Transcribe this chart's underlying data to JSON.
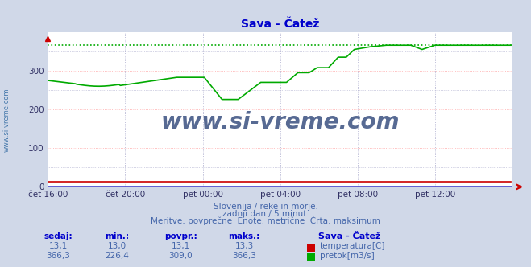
{
  "title": "Sava - Čatež",
  "title_color": "#0000cc",
  "bg_color": "#d0d8e8",
  "plot_bg_color": "#ffffff",
  "grid_color": "#aaaacc",
  "grid_red": "#ffaaaa",
  "axis_color": "#4444cc",
  "arrow_color": "#cc0000",
  "watermark_text": "www.si-vreme.com",
  "watermark_color": "#3a5080",
  "watermark_side": "www.si-vreme.com",
  "watermark_side_color": "#4477aa",
  "subtitle_lines": [
    "Slovenija / reke in morje.",
    "zadnji dan / 5 minut.",
    "Meritve: povprečne  Enote: metrične  Črta: maksimum"
  ],
  "subtitle_color": "#4466aa",
  "xtick_labels": [
    "čet 16:00",
    "čet 20:00",
    "pet 00:00",
    "pet 04:00",
    "pet 08:00",
    "pet 12:00"
  ],
  "ytick_values": [
    0,
    100,
    200,
    300
  ],
  "ytick_labels": [
    "0",
    "100",
    "200",
    "300"
  ],
  "ymin": 0,
  "ymax": 400,
  "xmin": 0,
  "xmax": 288,
  "flow_color": "#00aa00",
  "flow_max_value": 366.3,
  "temp_color": "#cc0000",
  "legend_title": "Sava - Čatež",
  "table_headers": [
    "sedaj:",
    "min.:",
    "povpr.:",
    "maks.:"
  ],
  "table_temp": [
    13.1,
    13.0,
    13.1,
    13.3
  ],
  "table_flow": [
    366.3,
    226.4,
    309.0,
    366.3
  ],
  "table_header_color": "#0000cc",
  "table_value_color": "#4466aa",
  "figwidth": 6.59,
  "figheight": 3.32,
  "dpi": 100
}
